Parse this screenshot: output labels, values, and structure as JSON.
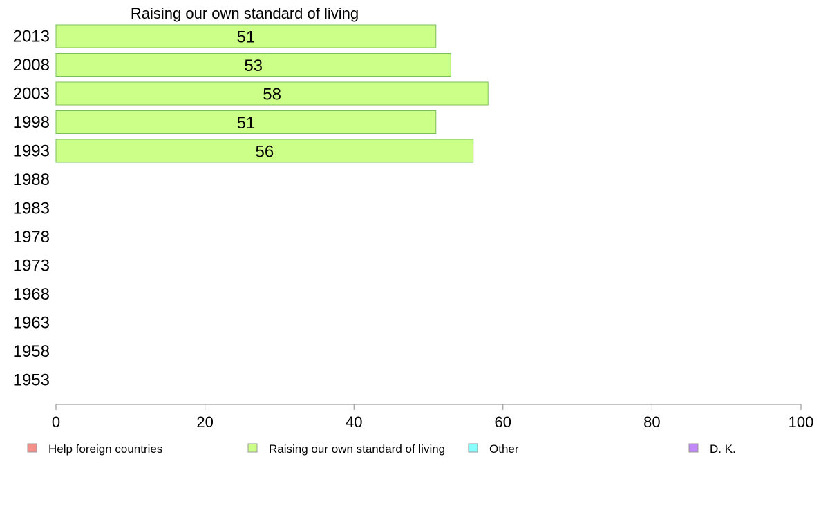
{
  "chart_data": {
    "type": "bar",
    "orientation": "horizontal",
    "title": "Raising our own standard of living",
    "xlabel": "",
    "ylabel": "",
    "xlim": [
      0,
      100
    ],
    "x_ticks": [
      "0",
      "20",
      "40",
      "60",
      "80",
      "100"
    ],
    "categories": [
      "2013",
      "2008",
      "2003",
      "1998",
      "1993",
      "1988",
      "1983",
      "1978",
      "1973",
      "1968",
      "1963",
      "1958",
      "1953"
    ],
    "series": [
      {
        "name": "Raising our own standard of living",
        "color": "#ccff88",
        "values": [
          51,
          53,
          58,
          51,
          56,
          null,
          null,
          null,
          null,
          null,
          null,
          null,
          null
        ],
        "labels": [
          "51",
          "53",
          "58",
          "51",
          "56",
          "",
          "",
          "",
          "",
          "",
          "",
          "",
          ""
        ]
      }
    ],
    "legend": {
      "placement": "bottom",
      "entries": [
        {
          "label": "Help foreign countries",
          "color": "#f4908a"
        },
        {
          "label": "Raising our own standard of living",
          "color": "#ccff88"
        },
        {
          "label": "Other",
          "color": "#88ffff"
        },
        {
          "label": "D. K.",
          "color": "#c088f8"
        }
      ]
    },
    "grid": false
  }
}
